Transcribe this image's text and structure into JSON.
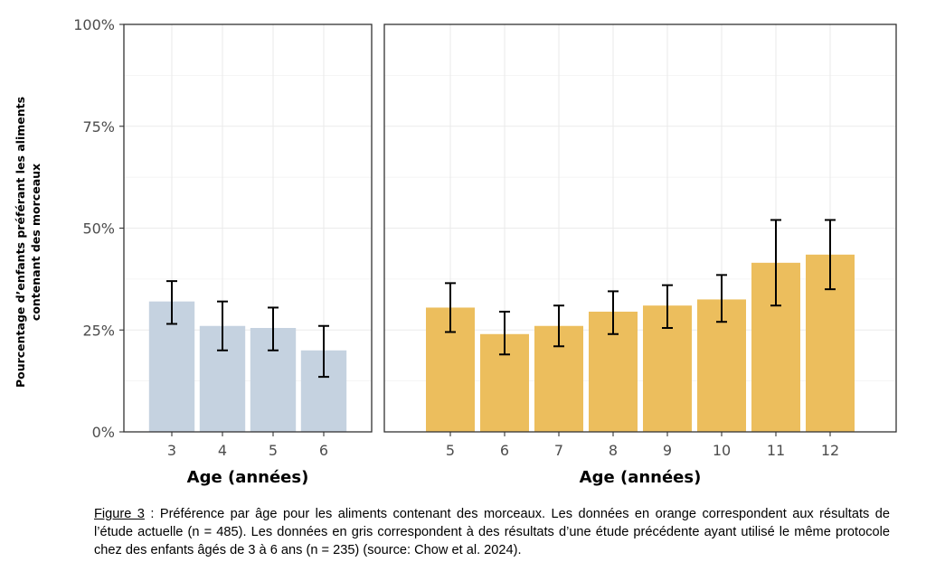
{
  "chart_data": [
    {
      "type": "bar",
      "panel": "previous-study",
      "color": "#c5d2e0",
      "categories": [
        "3",
        "4",
        "5",
        "6"
      ],
      "values": [
        32,
        26,
        25.5,
        20
      ],
      "error_low": [
        26.5,
        20,
        20,
        13.5
      ],
      "error_high": [
        37,
        32,
        30.5,
        26
      ],
      "xlabel": "Age (années)",
      "ylabel": "Pourcentage d’enfants préférant les aliments contenant des morceaux",
      "ylim": [
        0,
        100
      ],
      "yticks": [
        "0%",
        "25%",
        "50%",
        "75%",
        "100%"
      ],
      "grid": true
    },
    {
      "type": "bar",
      "panel": "current-study",
      "color": "#ecbe5d",
      "categories": [
        "5",
        "6",
        "7",
        "8",
        "9",
        "10",
        "11",
        "12"
      ],
      "values": [
        30.5,
        24,
        26,
        29.5,
        31,
        32.5,
        41.5,
        43.5
      ],
      "error_low": [
        24.5,
        19,
        21,
        24,
        25.5,
        27,
        31,
        35
      ],
      "error_high": [
        36.5,
        29.5,
        31,
        34.5,
        36,
        38.5,
        52,
        52
      ],
      "xlabel": "Age (années)",
      "ylim": [
        0,
        100
      ],
      "grid": true
    }
  ],
  "ylabel_lines": [
    "Pourcentage d’enfants préférant les aliments",
    "contenant des morceaux"
  ],
  "caption": {
    "figure_label": "Figure 3",
    "text": " : Préférence par âge pour les aliments contenant des morceaux. Les données en orange correspondent aux résultats de l’étude actuelle (n = 485). Les données en gris correspondent à des résultats d’une étude précédente ayant utilisé le même protocole chez des enfants âgés de 3 à 6 ans (n = 235) (source: Chow et al. 2024)."
  }
}
